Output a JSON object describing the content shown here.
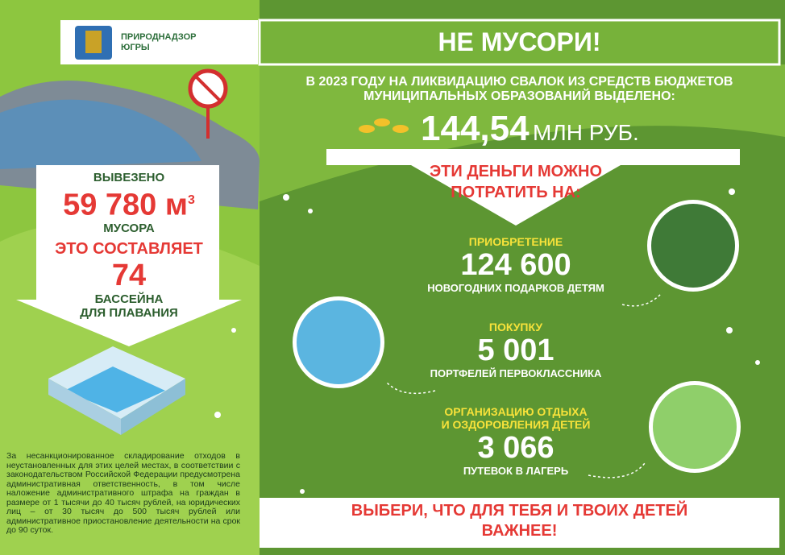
{
  "header": {
    "org": [
      "ПРИРОДНАДЗОР",
      "ЮГРЫ"
    ],
    "title": "НЕ МУСОРИ!"
  },
  "budget": {
    "text": [
      "В 2023 ГОДУ НА ЛИКВИДАЦИЮ СВАЛОК ИЗ СРЕДСТВ БЮДЖЕТОВ",
      "МУНИЦИПАЛЬНЫХ ОБРАЗОВАНИЙ ВЫДЕЛЕНО:"
    ],
    "amount": "144,54",
    "unit": "МЛН РУБ."
  },
  "spend": {
    "heading": [
      "ЭТИ ДЕНЬГИ МОЖНО",
      "ПОТРАТИТЬ НА:"
    ],
    "items": [
      {
        "label": [
          "ПРИОБРЕТЕНИЕ"
        ],
        "value": "124 600",
        "desc": "НОВОГОДНИХ ПОДАРКОВ ДЕТЯМ"
      },
      {
        "label": [
          "ПОКУПКУ"
        ],
        "value": "5 001",
        "desc": "ПОРТФЕЛЕЙ ПЕРВОКЛАССНИКА"
      },
      {
        "label": [
          "ОРГАНИЗАЦИЮ ОТДЫХА",
          "И ОЗДОРОВЛЕНИЯ ДЕТЕЙ"
        ],
        "value": "3 066",
        "desc": "ПУТЕВОК В ЛАГЕРЬ"
      }
    ]
  },
  "waste": {
    "removed": "ВЫВЕЗЕНО",
    "volume": "59 780",
    "unit": "м",
    "unit_power": "3",
    "what": "МУСОРА",
    "equals": "ЭТО СОСТАВЛЯЕТ",
    "pools": "74",
    "pools_text": [
      "БАССЕЙНА",
      "ДЛЯ ПЛАВАНИЯ"
    ]
  },
  "footnote": "За несанкционированное складирование отходов в неустановленных для этих целей местах, в соответствии с законодательством Российской Федерации предусмотрена административная ответственность, в том числе наложение административного штрафа на граждан в размере от 1 тысячи до 40 тысяч рублей, на юридических лиц – от 30 тысяч до 500 тысяч рублей или административное приостановление деятельности на срок до 90 суток.",
  "footer": [
    "ВЫБЕРИ, ЧТО ДЛЯ ТЕБЯ И ТВОИХ ДЕТЕЙ",
    "ВАЖНЕЕ!"
  ]
}
